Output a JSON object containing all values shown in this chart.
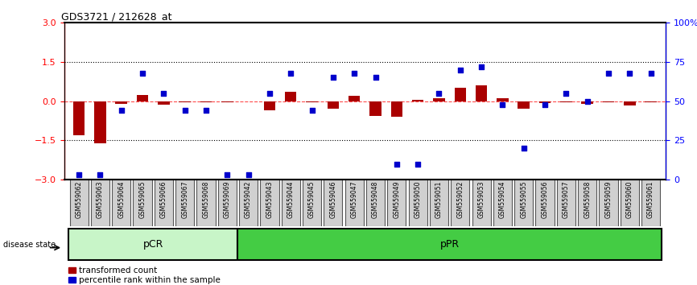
{
  "title": "GDS3721 / 212628_at",
  "samples": [
    "GSM559062",
    "GSM559063",
    "GSM559064",
    "GSM559065",
    "GSM559066",
    "GSM559067",
    "GSM559068",
    "GSM559069",
    "GSM559042",
    "GSM559043",
    "GSM559044",
    "GSM559045",
    "GSM559046",
    "GSM559047",
    "GSM559048",
    "GSM559049",
    "GSM559050",
    "GSM559051",
    "GSM559052",
    "GSM559053",
    "GSM559054",
    "GSM559055",
    "GSM559056",
    "GSM559057",
    "GSM559058",
    "GSM559059",
    "GSM559060",
    "GSM559061"
  ],
  "transformed_count": [
    -1.3,
    -1.6,
    -0.1,
    0.25,
    -0.12,
    -0.05,
    -0.05,
    -0.03,
    0.0,
    -0.35,
    0.35,
    -0.05,
    -0.3,
    0.2,
    -0.55,
    -0.6,
    0.05,
    0.1,
    0.5,
    0.6,
    0.1,
    -0.3,
    -0.07,
    -0.05,
    -0.1,
    -0.05,
    -0.15,
    -0.05
  ],
  "percentile_rank": [
    3,
    3,
    44,
    68,
    55,
    44,
    44,
    3,
    3,
    55,
    68,
    44,
    65,
    68,
    65,
    10,
    10,
    55,
    70,
    72,
    48,
    20,
    48,
    55,
    50,
    68,
    68,
    68
  ],
  "group_labels": [
    "pCR",
    "pPR"
  ],
  "group_ranges": [
    [
      0,
      8
    ],
    [
      8,
      28
    ]
  ],
  "group_color_pcr": "#c8f5c8",
  "group_color_ppr": "#44cc44",
  "bar_color": "#AA0000",
  "dot_color": "#0000CC",
  "ylim_left": [
    -3,
    3
  ],
  "yticks_left": [
    -3,
    -1.5,
    0,
    1.5,
    3
  ],
  "yticks_right": [
    0,
    25,
    50,
    75,
    100
  ],
  "hline_dotted": [
    -1.5,
    1.5
  ],
  "hline_dashed": [
    0
  ],
  "disease_state_label": "disease state",
  "legend_labels": [
    "transformed count",
    "percentile rank within the sample"
  ]
}
